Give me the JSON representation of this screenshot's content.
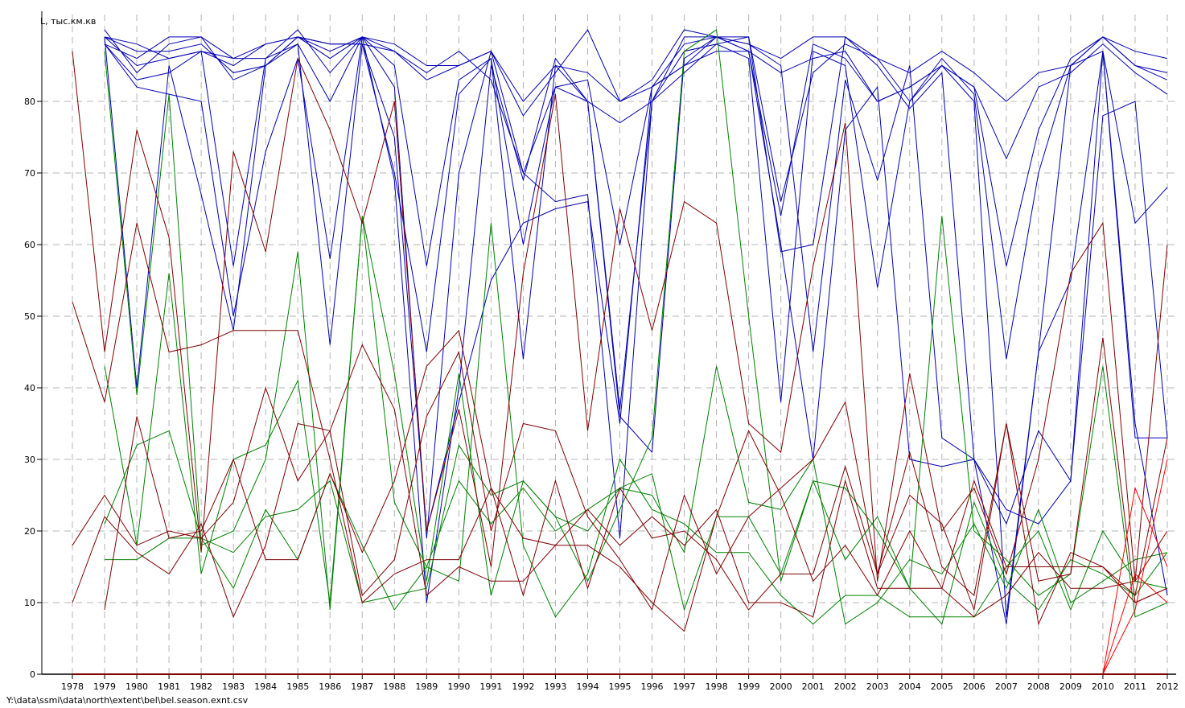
{
  "file_path": "Y:\\data\\ssmi\\data\\north\\extent\\bel\\bel.season.exnt.csv",
  "colors": {
    "blue": "#0000b4",
    "green": "#008000",
    "darkred": "#800000",
    "red": "#ff0000",
    "grid": "#b4b4b4"
  },
  "chart_data": {
    "type": "line",
    "title": "",
    "ylabel": "L, тыс.км.кв",
    "xlabel": "",
    "x": [
      1978,
      1979,
      1980,
      1981,
      1982,
      1983,
      1984,
      1985,
      1986,
      1987,
      1988,
      1989,
      1990,
      1991,
      1992,
      1993,
      1994,
      1995,
      1996,
      1997,
      1998,
      1999,
      2000,
      2001,
      2002,
      2003,
      2004,
      2005,
      2006,
      2007,
      2008,
      2009,
      2010,
      2011,
      2012
    ],
    "xlim": [
      1978,
      2012
    ],
    "ylim": [
      0,
      90
    ],
    "yticks": [
      0,
      10,
      20,
      30,
      40,
      50,
      60,
      70,
      80
    ],
    "grid": true,
    "series": [
      {
        "color": "blue",
        "values": [
          null,
          89,
          87,
          87,
          88,
          84,
          85,
          89,
          87,
          89,
          87,
          83,
          85,
          87,
          80,
          85,
          84,
          80,
          82,
          88,
          89,
          88,
          86,
          89,
          89,
          86,
          84,
          87,
          84,
          80,
          84,
          85,
          89,
          85,
          83
        ]
      },
      {
        "color": "blue",
        "values": [
          null,
          88,
          82,
          81,
          80,
          50,
          73,
          86,
          58,
          89,
          85,
          57,
          83,
          86,
          60,
          82,
          83,
          60,
          82,
          85,
          87,
          87,
          64,
          88,
          86,
          80,
          82,
          85,
          82,
          72,
          82,
          84,
          88,
          84,
          81
        ]
      },
      {
        "color": "blue",
        "values": [
          null,
          89,
          40,
          85,
          67,
          48,
          85,
          88,
          46,
          88,
          70,
          45,
          81,
          86,
          44,
          85,
          80,
          37,
          80,
          87,
          88,
          86,
          38,
          87,
          85,
          54,
          80,
          86,
          81,
          44,
          70,
          85,
          87,
          63,
          68
        ]
      },
      {
        "color": "blue",
        "values": [
          null,
          89,
          85,
          86,
          87,
          57,
          86,
          88,
          80,
          89,
          82,
          19,
          70,
          87,
          70,
          66,
          67,
          19,
          80,
          89,
          89,
          87,
          60,
          30,
          76,
          82,
          30,
          29,
          30,
          21,
          34,
          27,
          87,
          33,
          33
        ]
      },
      {
        "color": "blue",
        "values": [
          null,
          90,
          84,
          88,
          89,
          83,
          85,
          89,
          88,
          88,
          75,
          20,
          38,
          55,
          63,
          65,
          66,
          35,
          82,
          85,
          89,
          88,
          85,
          45,
          83,
          69,
          85,
          33,
          30,
          23,
          21,
          27,
          78,
          80,
          33
        ]
      },
      {
        "color": "blue",
        "values": [
          null,
          88,
          86,
          89,
          89,
          86,
          86,
          90,
          84,
          89,
          69,
          10,
          40,
          85,
          69,
          86,
          80,
          36,
          31,
          86,
          89,
          89,
          59,
          60,
          89,
          85,
          79,
          84,
          30,
          7,
          45,
          55,
          87,
          35,
          11
        ]
      },
      {
        "color": "blue",
        "values": [
          null,
          89,
          88,
          86,
          87,
          86,
          88,
          89,
          88,
          88,
          87,
          84,
          87,
          83,
          70,
          82,
          80,
          77,
          80,
          84,
          88,
          89,
          66,
          84,
          88,
          86,
          80,
          85,
          80,
          8,
          45,
          85,
          89,
          87,
          86
        ]
      },
      {
        "color": "blue",
        "values": [
          null,
          88,
          83,
          84,
          87,
          85,
          88,
          89,
          86,
          89,
          88,
          85,
          85,
          87,
          78,
          84,
          90,
          80,
          83,
          90,
          89,
          87,
          84,
          86,
          87,
          80,
          82,
          85,
          82,
          57,
          76,
          86,
          89,
          85,
          84
        ]
      },
      {
        "color": "green",
        "values": [
          null,
          87,
          39,
          81,
          18,
          20,
          30,
          59,
          9,
          64,
          42,
          13,
          42,
          11,
          27,
          22,
          13,
          23,
          33,
          87,
          90,
          50,
          13,
          27,
          26,
          20,
          12,
          64,
          20,
          16,
          11,
          14,
          43,
          8,
          10
        ]
      },
      {
        "color": "green",
        "values": [
          null,
          43,
          18,
          56,
          14,
          30,
          32,
          41,
          10,
          64,
          24,
          15,
          13,
          63,
          18,
          8,
          14,
          30,
          23,
          21,
          17,
          17,
          11,
          7,
          11,
          11,
          8,
          8,
          8,
          15,
          20,
          9,
          20,
          13,
          12
        ]
      },
      {
        "color": "green",
        "values": [
          null,
          21,
          32,
          34,
          19,
          12,
          23,
          16,
          28,
          18,
          9,
          15,
          27,
          21,
          26,
          20,
          23,
          26,
          25,
          17,
          43,
          24,
          23,
          30,
          7,
          10,
          16,
          14,
          21,
          12,
          23,
          10,
          13,
          16,
          17
        ]
      },
      {
        "color": "green",
        "values": [
          null,
          16,
          16,
          19,
          19,
          17,
          22,
          23,
          27,
          10,
          11,
          12,
          32,
          25,
          27,
          22,
          20,
          26,
          28,
          9,
          22,
          22,
          14,
          27,
          16,
          22,
          12,
          7,
          24,
          13,
          9,
          16,
          14,
          11,
          17
        ]
      },
      {
        "color": "darkred",
        "values": [
          87,
          45,
          76,
          61,
          17,
          73,
          59,
          86,
          76,
          63,
          80,
          20,
          37,
          15,
          56,
          81,
          34,
          65,
          48,
          66,
          63,
          35,
          31,
          57,
          77,
          13,
          42,
          20,
          26,
          14,
          30,
          56,
          63,
          13,
          60
        ]
      },
      {
        "color": "darkred",
        "values": [
          52,
          38,
          63,
          45,
          46,
          48,
          48,
          48,
          30,
          10,
          14,
          16,
          16,
          26,
          19,
          18,
          23,
          18,
          22,
          18,
          23,
          10,
          10,
          8,
          27,
          12,
          12,
          12,
          27,
          15,
          15,
          15,
          15,
          11,
          33
        ]
      },
      {
        "color": "darkred",
        "values": [
          18,
          25,
          18,
          20,
          19,
          24,
          40,
          27,
          34,
          46,
          37,
          11,
          15,
          13,
          13,
          18,
          18,
          15,
          10,
          6,
          22,
          34,
          25,
          13,
          18,
          11,
          20,
          12,
          8,
          11,
          17,
          12,
          12,
          13,
          20
        ]
      },
      {
        "color": "darkred",
        "values": [
          10,
          22,
          17,
          14,
          21,
          8,
          18,
          35,
          34,
          11,
          16,
          36,
          45,
          20,
          35,
          34,
          22,
          16,
          9,
          25,
          14,
          22,
          26,
          30,
          38,
          14,
          31,
          15,
          11,
          35,
          7,
          17,
          15,
          10,
          12
        ]
      },
      {
        "color": "darkred",
        "values": [
          null,
          9,
          36,
          19,
          20,
          30,
          16,
          16,
          28,
          17,
          27,
          43,
          48,
          26,
          11,
          27,
          12,
          26,
          19,
          20,
          16,
          9,
          14,
          14,
          29,
          14,
          25,
          21,
          9,
          35,
          13,
          14,
          47,
          10,
          12
        ]
      },
      {
        "color": "red",
        "values": [
          0,
          0,
          0,
          0,
          0,
          0,
          0,
          0,
          0,
          0,
          0,
          0,
          0,
          0,
          0,
          0,
          0,
          0,
          0,
          0,
          0,
          0,
          0,
          0,
          0,
          0,
          0,
          0,
          0,
          0,
          0,
          0,
          0,
          26,
          15
        ]
      },
      {
        "color": "red",
        "values": [
          null,
          null,
          null,
          null,
          null,
          null,
          null,
          null,
          null,
          null,
          null,
          null,
          null,
          null,
          null,
          null,
          null,
          null,
          null,
          null,
          null,
          null,
          null,
          null,
          null,
          null,
          null,
          null,
          null,
          null,
          null,
          null,
          0,
          14,
          10
        ]
      },
      {
        "color": "red",
        "values": [
          null,
          null,
          null,
          null,
          null,
          null,
          null,
          null,
          null,
          null,
          null,
          null,
          null,
          null,
          null,
          null,
          null,
          null,
          null,
          null,
          null,
          null,
          null,
          null,
          null,
          null,
          null,
          null,
          null,
          null,
          null,
          null,
          0,
          9,
          30
        ]
      }
    ]
  }
}
